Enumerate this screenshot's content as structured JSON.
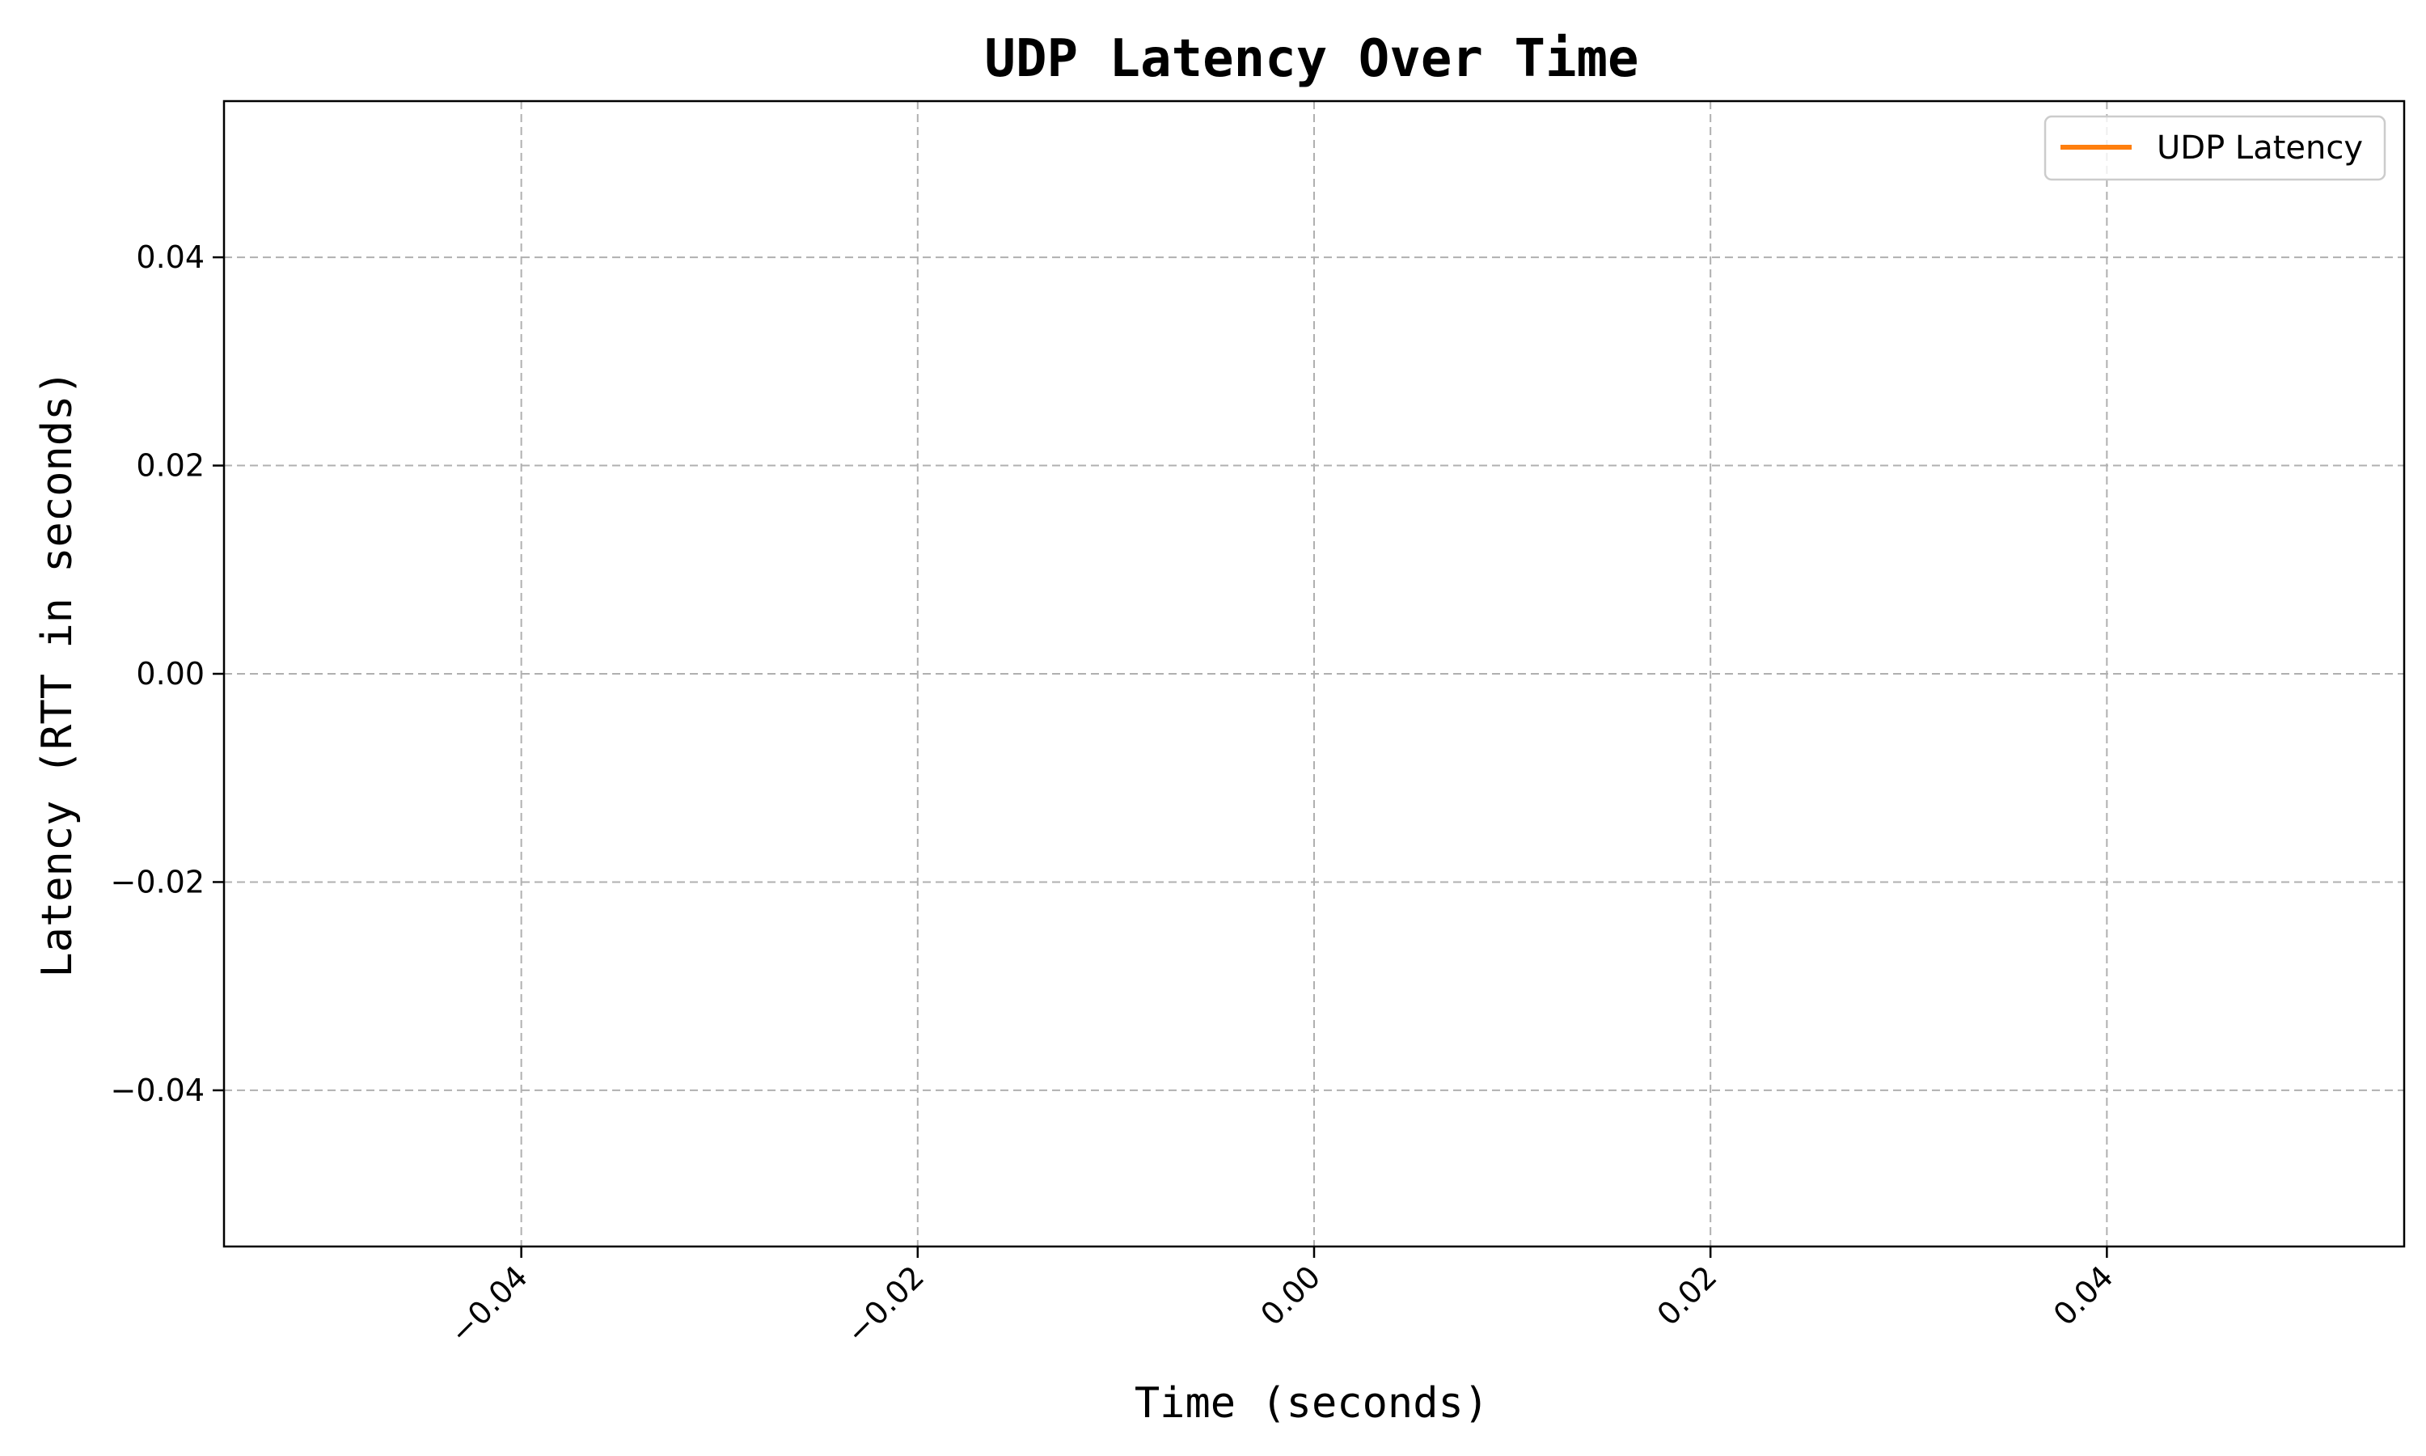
{
  "chart_data": {
    "type": "line",
    "title": "UDP Latency Over Time",
    "xlabel": "Time (seconds)",
    "ylabel": "Latency (RTT in seconds)",
    "xlim": [
      -0.055,
      0.055
    ],
    "ylim": [
      -0.055,
      0.055
    ],
    "x_ticks": [
      -0.04,
      -0.02,
      0.0,
      0.02,
      0.04
    ],
    "x_tick_labels": [
      "−0.04",
      "−0.02",
      "0.00",
      "0.02",
      "0.04"
    ],
    "x_tick_rotation_deg": 45,
    "y_ticks": [
      0.04,
      0.02,
      0.0,
      -0.02,
      -0.04
    ],
    "y_tick_labels": [
      "0.04",
      "0.02",
      "0.00",
      "−0.02",
      "−0.04"
    ],
    "grid": true,
    "legend_position": "upper right",
    "series": [
      {
        "name": "UDP Latency",
        "color": "#ff7f0e",
        "x": [],
        "y": []
      }
    ]
  },
  "colors": {
    "grid": "#b0b0b0",
    "axes": "#000000",
    "legend_border": "#cccccc"
  }
}
